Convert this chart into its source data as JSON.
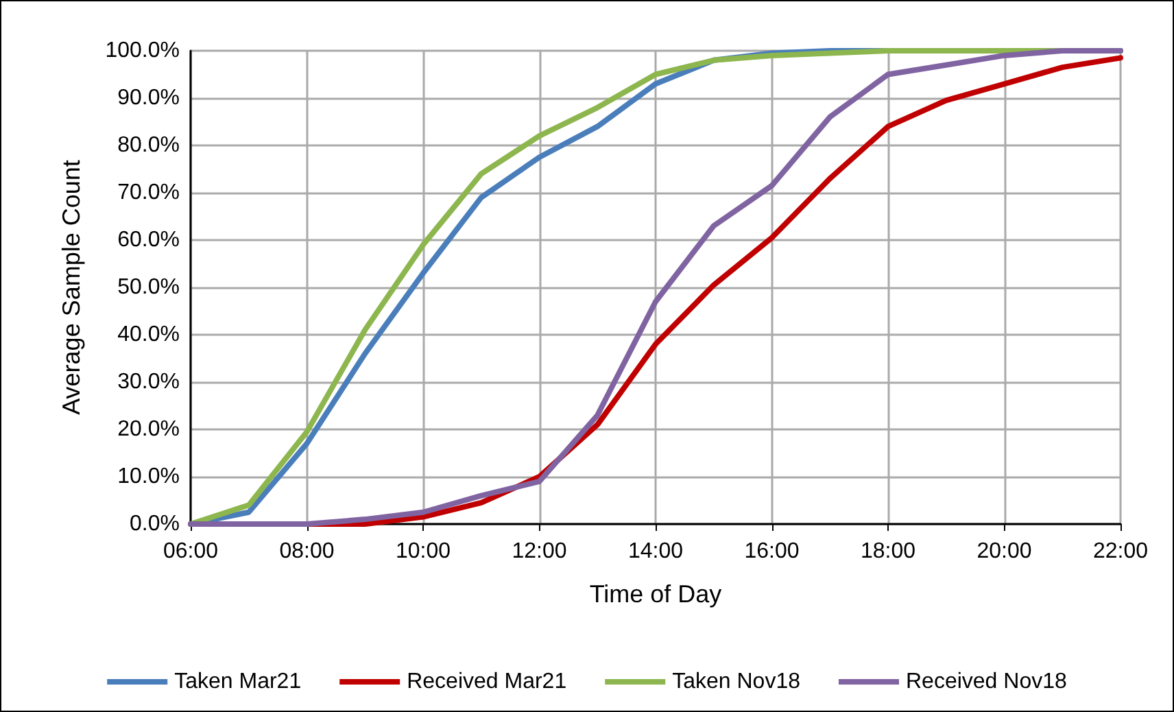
{
  "chart_data": {
    "type": "line",
    "xlabel": "Time of Day",
    "ylabel": "Average Sample Count",
    "x": [
      6,
      7,
      8,
      9,
      10,
      11,
      12,
      13,
      14,
      15,
      16,
      17,
      18,
      19,
      20,
      21,
      22
    ],
    "series": [
      {
        "name": "Taken Mar21",
        "color": "#4a7ebb",
        "values": [
          0,
          2.5,
          17,
          36,
          53,
          69,
          77.5,
          84,
          93,
          98,
          99.5,
          100,
          100,
          100,
          100,
          100,
          100
        ]
      },
      {
        "name": "Received Mar21",
        "color": "#c00000",
        "values": [
          0,
          0,
          0,
          0,
          1.5,
          4.5,
          10,
          21,
          38,
          50.5,
          60.5,
          73,
          84,
          89.5,
          93,
          96.5,
          98.5
        ]
      },
      {
        "name": "Taken Nov18",
        "color": "#8db64e",
        "values": [
          0,
          4,
          19.5,
          41,
          59,
          74,
          82,
          88,
          95,
          98,
          99,
          99.5,
          100,
          100,
          100,
          100,
          100
        ]
      },
      {
        "name": "Received Nov18",
        "color": "#8064a2",
        "values": [
          0,
          0,
          0,
          1,
          2.5,
          6,
          9,
          23,
          47,
          63,
          71.5,
          86,
          95,
          97,
          99,
          100,
          100
        ]
      }
    ],
    "xlim": [
      6,
      22
    ],
    "xticks": [
      {
        "value": 6,
        "label": "06:00"
      },
      {
        "value": 8,
        "label": "08:00"
      },
      {
        "value": 10,
        "label": "10:00"
      },
      {
        "value": 12,
        "label": "12:00"
      },
      {
        "value": 14,
        "label": "14:00"
      },
      {
        "value": 16,
        "label": "16:00"
      },
      {
        "value": 18,
        "label": "18:00"
      },
      {
        "value": 20,
        "label": "20:00"
      },
      {
        "value": 22,
        "label": "22:00"
      }
    ],
    "ylim": [
      0,
      100
    ],
    "yticks": [
      {
        "value": 0,
        "label": "0.0%"
      },
      {
        "value": 10,
        "label": "10.0%"
      },
      {
        "value": 20,
        "label": "20.0%"
      },
      {
        "value": 30,
        "label": "30.0%"
      },
      {
        "value": 40,
        "label": "40.0%"
      },
      {
        "value": 50,
        "label": "50.0%"
      },
      {
        "value": 60,
        "label": "60.0%"
      },
      {
        "value": 70,
        "label": "70.0%"
      },
      {
        "value": 80,
        "label": "80.0%"
      },
      {
        "value": 90,
        "label": "90.0%"
      },
      {
        "value": 100,
        "label": "100.0%"
      }
    ],
    "grid": true,
    "legend": "bottom",
    "marker": "none",
    "line_style": "solid"
  }
}
